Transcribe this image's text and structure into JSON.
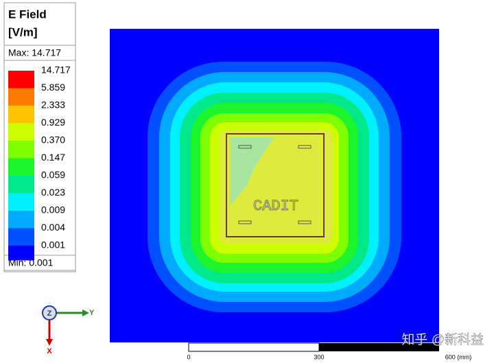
{
  "legend": {
    "title": "E Field",
    "unit": "[V/m]",
    "max_text": "Max: 14.717",
    "min_text": "Min: 0.001",
    "levels": [
      "14.717",
      "5.859",
      "2.333",
      "0.929",
      "0.370",
      "0.147",
      "0.059",
      "0.023",
      "0.009",
      "0.004",
      "0.001"
    ],
    "colors": [
      "#ff0000",
      "#ff7a00",
      "#ffc400",
      "#ccff00",
      "#7dff00",
      "#1cf52c",
      "#00e88a",
      "#00f0ff",
      "#00aaff",
      "#0050ff",
      "#0000ff"
    ]
  },
  "board": {
    "label": "CADIT"
  },
  "axes": {
    "z": "Z",
    "y": "Y",
    "x": "X"
  },
  "scale_bar": {
    "start": "0",
    "middle": "300",
    "end": "600 (mm)"
  },
  "watermark": "知乎 @新科益"
}
